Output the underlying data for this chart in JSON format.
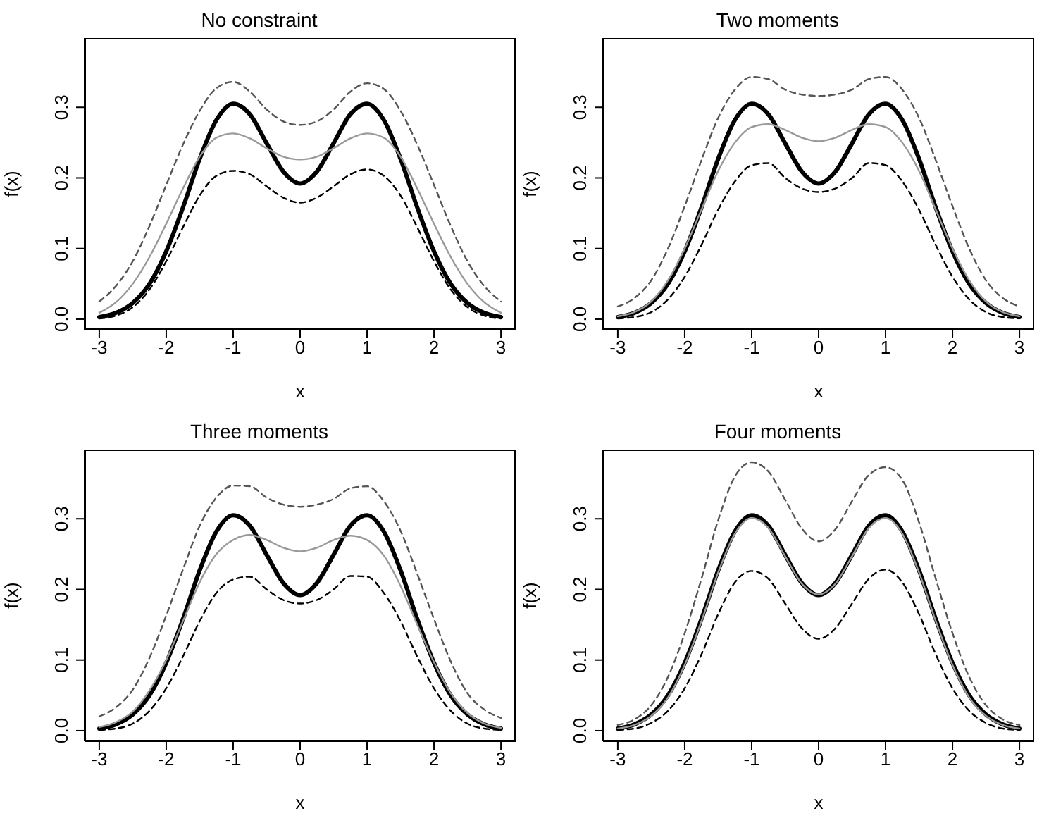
{
  "chart_data": [
    {
      "type": "line",
      "title": "No constraint",
      "xlabel": "x",
      "ylabel": "f(x)",
      "xlim": [
        -3.22,
        3.22
      ],
      "ylim": [
        -0.015,
        0.398
      ],
      "xticks": [
        -3,
        -2,
        -1,
        0,
        1,
        2,
        3
      ],
      "yticks": [
        {
          "value": 0,
          "label": "0.0"
        },
        {
          "value": 0.1,
          "label": "0.1"
        },
        {
          "value": 0.2,
          "label": "0.2"
        },
        {
          "value": 0.3,
          "label": "0.3"
        }
      ],
      "grid": false,
      "legend": false,
      "marker": "none",
      "x": [
        -3,
        -2.75,
        -2.5,
        -2.25,
        -2,
        -1.75,
        -1.5,
        -1.25,
        -1,
        -0.75,
        -0.5,
        -0.25,
        0,
        0.25,
        0.5,
        0.75,
        1,
        1.25,
        1.5,
        1.75,
        2,
        2.25,
        2.5,
        2.75,
        3
      ],
      "series": [
        {
          "color": "#000000",
          "line_style": "solid",
          "values": [
            0.003,
            0.009,
            0.023,
            0.05,
            0.096,
            0.158,
            0.227,
            0.282,
            0.305,
            0.29,
            0.249,
            0.209,
            0.192,
            0.209,
            0.249,
            0.29,
            0.305,
            0.282,
            0.227,
            0.158,
            0.096,
            0.05,
            0.023,
            0.009,
            0.003
          ]
        },
        {
          "color": "#999999",
          "line_style": "solid",
          "values": [
            0.009,
            0.024,
            0.05,
            0.088,
            0.135,
            0.185,
            0.23,
            0.257,
            0.263,
            0.256,
            0.242,
            0.23,
            0.226,
            0.23,
            0.242,
            0.256,
            0.263,
            0.257,
            0.23,
            0.185,
            0.135,
            0.088,
            0.05,
            0.024,
            0.009
          ]
        },
        {
          "color": "#555555",
          "line_style": "dashed",
          "values": [
            0.025,
            0.047,
            0.082,
            0.132,
            0.19,
            0.247,
            0.295,
            0.327,
            0.336,
            0.322,
            0.297,
            0.28,
            0.275,
            0.28,
            0.297,
            0.322,
            0.334,
            0.326,
            0.295,
            0.247,
            0.19,
            0.132,
            0.082,
            0.047,
            0.025
          ]
        },
        {
          "color": "#000000",
          "line_style": "dashed",
          "values": [
            0.001,
            0.005,
            0.017,
            0.042,
            0.082,
            0.13,
            0.175,
            0.203,
            0.21,
            0.205,
            0.188,
            0.172,
            0.165,
            0.172,
            0.188,
            0.205,
            0.212,
            0.203,
            0.175,
            0.13,
            0.082,
            0.042,
            0.017,
            0.005,
            0.001
          ]
        }
      ]
    },
    {
      "type": "line",
      "title": "Two moments",
      "xlabel": "x",
      "ylabel": "f(x)",
      "xlim": [
        -3.22,
        3.22
      ],
      "ylim": [
        -0.015,
        0.398
      ],
      "xticks": [
        -3,
        -2,
        -1,
        0,
        1,
        2,
        3
      ],
      "yticks": [
        {
          "value": 0,
          "label": "0.0"
        },
        {
          "value": 0.1,
          "label": "0.1"
        },
        {
          "value": 0.2,
          "label": "0.2"
        },
        {
          "value": 0.3,
          "label": "0.3"
        }
      ],
      "grid": false,
      "legend": false,
      "marker": "none",
      "x": [
        -3,
        -2.75,
        -2.5,
        -2.25,
        -2,
        -1.75,
        -1.5,
        -1.25,
        -1,
        -0.75,
        -0.5,
        -0.25,
        0,
        0.25,
        0.5,
        0.75,
        1,
        1.25,
        1.5,
        1.75,
        2,
        2.25,
        2.5,
        2.75,
        3
      ],
      "series": [
        {
          "color": "#000000",
          "line_style": "solid",
          "values": [
            0.003,
            0.009,
            0.023,
            0.05,
            0.096,
            0.158,
            0.227,
            0.282,
            0.305,
            0.29,
            0.249,
            0.209,
            0.192,
            0.209,
            0.249,
            0.29,
            0.305,
            0.282,
            0.227,
            0.158,
            0.096,
            0.05,
            0.023,
            0.009,
            0.003
          ]
        },
        {
          "color": "#999999",
          "line_style": "solid",
          "values": [
            0.004,
            0.01,
            0.025,
            0.055,
            0.1,
            0.155,
            0.21,
            0.25,
            0.272,
            0.276,
            0.268,
            0.257,
            0.252,
            0.257,
            0.268,
            0.276,
            0.272,
            0.25,
            0.21,
            0.155,
            0.1,
            0.055,
            0.025,
            0.01,
            0.004
          ]
        },
        {
          "color": "#555555",
          "line_style": "dashed",
          "values": [
            0.018,
            0.03,
            0.055,
            0.1,
            0.16,
            0.225,
            0.285,
            0.325,
            0.343,
            0.34,
            0.325,
            0.318,
            0.316,
            0.318,
            0.325,
            0.34,
            0.343,
            0.325,
            0.285,
            0.225,
            0.16,
            0.1,
            0.055,
            0.03,
            0.018
          ]
        },
        {
          "color": "#000000",
          "line_style": "dashed",
          "values": [
            0.001,
            0.003,
            0.01,
            0.028,
            0.06,
            0.105,
            0.155,
            0.195,
            0.218,
            0.221,
            0.2,
            0.185,
            0.18,
            0.185,
            0.2,
            0.221,
            0.218,
            0.195,
            0.155,
            0.105,
            0.06,
            0.028,
            0.01,
            0.003,
            0.001
          ]
        }
      ]
    },
    {
      "type": "line",
      "title": "Three moments",
      "xlabel": "x",
      "ylabel": "f(x)",
      "xlim": [
        -3.22,
        3.22
      ],
      "ylim": [
        -0.015,
        0.398
      ],
      "xticks": [
        -3,
        -2,
        -1,
        0,
        1,
        2,
        3
      ],
      "yticks": [
        {
          "value": 0,
          "label": "0.0"
        },
        {
          "value": 0.1,
          "label": "0.1"
        },
        {
          "value": 0.2,
          "label": "0.2"
        },
        {
          "value": 0.3,
          "label": "0.3"
        }
      ],
      "grid": false,
      "legend": false,
      "marker": "none",
      "x": [
        -3,
        -2.75,
        -2.5,
        -2.25,
        -2,
        -1.75,
        -1.5,
        -1.25,
        -1,
        -0.75,
        -0.5,
        -0.25,
        0,
        0.25,
        0.5,
        0.75,
        1,
        1.25,
        1.5,
        1.75,
        2,
        2.25,
        2.5,
        2.75,
        3
      ],
      "series": [
        {
          "color": "#000000",
          "line_style": "solid",
          "values": [
            0.003,
            0.009,
            0.023,
            0.05,
            0.096,
            0.158,
            0.227,
            0.282,
            0.305,
            0.29,
            0.249,
            0.209,
            0.192,
            0.209,
            0.249,
            0.29,
            0.305,
            0.282,
            0.227,
            0.158,
            0.096,
            0.05,
            0.023,
            0.009,
            0.003
          ]
        },
        {
          "color": "#999999",
          "line_style": "solid",
          "values": [
            0.005,
            0.012,
            0.027,
            0.057,
            0.1,
            0.155,
            0.21,
            0.25,
            0.27,
            0.277,
            0.27,
            0.259,
            0.254,
            0.259,
            0.27,
            0.276,
            0.27,
            0.248,
            0.205,
            0.15,
            0.097,
            0.053,
            0.025,
            0.01,
            0.004
          ]
        },
        {
          "color": "#555555",
          "line_style": "dashed",
          "values": [
            0.02,
            0.033,
            0.058,
            0.103,
            0.163,
            0.228,
            0.29,
            0.33,
            0.347,
            0.346,
            0.33,
            0.32,
            0.317,
            0.32,
            0.328,
            0.343,
            0.346,
            0.325,
            0.283,
            0.222,
            0.158,
            0.098,
            0.053,
            0.03,
            0.018
          ]
        },
        {
          "color": "#000000",
          "line_style": "dashed",
          "values": [
            0.001,
            0.003,
            0.01,
            0.028,
            0.06,
            0.105,
            0.155,
            0.195,
            0.214,
            0.218,
            0.2,
            0.185,
            0.18,
            0.185,
            0.2,
            0.219,
            0.218,
            0.195,
            0.155,
            0.105,
            0.06,
            0.028,
            0.01,
            0.003,
            0.001
          ]
        }
      ]
    },
    {
      "type": "line",
      "title": "Four moments",
      "xlabel": "x",
      "ylabel": "f(x)",
      "xlim": [
        -3.22,
        3.22
      ],
      "ylim": [
        -0.015,
        0.398
      ],
      "xticks": [
        -3,
        -2,
        -1,
        0,
        1,
        2,
        3
      ],
      "yticks": [
        {
          "value": 0,
          "label": "0.0"
        },
        {
          "value": 0.1,
          "label": "0.1"
        },
        {
          "value": 0.2,
          "label": "0.2"
        },
        {
          "value": 0.3,
          "label": "0.3"
        }
      ],
      "grid": false,
      "legend": false,
      "marker": "none",
      "x": [
        -3,
        -2.75,
        -2.5,
        -2.25,
        -2,
        -1.75,
        -1.5,
        -1.25,
        -1,
        -0.75,
        -0.5,
        -0.25,
        0,
        0.25,
        0.5,
        0.75,
        1,
        1.25,
        1.5,
        1.75,
        2,
        2.25,
        2.5,
        2.75,
        3
      ],
      "series": [
        {
          "color": "#000000",
          "line_style": "solid",
          "values": [
            0.003,
            0.009,
            0.023,
            0.05,
            0.096,
            0.158,
            0.227,
            0.282,
            0.305,
            0.29,
            0.249,
            0.209,
            0.192,
            0.209,
            0.249,
            0.29,
            0.305,
            0.282,
            0.227,
            0.158,
            0.096,
            0.05,
            0.023,
            0.009,
            0.003
          ]
        },
        {
          "color": "#999999",
          "line_style": "solid",
          "values": [
            0.003,
            0.008,
            0.021,
            0.047,
            0.093,
            0.155,
            0.224,
            0.279,
            0.301,
            0.287,
            0.247,
            0.208,
            0.193,
            0.208,
            0.247,
            0.287,
            0.301,
            0.279,
            0.224,
            0.155,
            0.093,
            0.047,
            0.021,
            0.008,
            0.003
          ]
        },
        {
          "color": "#555555",
          "line_style": "dashed",
          "values": [
            0.008,
            0.016,
            0.036,
            0.076,
            0.138,
            0.215,
            0.298,
            0.36,
            0.38,
            0.367,
            0.327,
            0.286,
            0.268,
            0.285,
            0.325,
            0.362,
            0.373,
            0.355,
            0.295,
            0.215,
            0.138,
            0.076,
            0.036,
            0.016,
            0.008
          ]
        },
        {
          "color": "#000000",
          "line_style": "dashed",
          "values": [
            0.001,
            0.003,
            0.011,
            0.028,
            0.06,
            0.108,
            0.165,
            0.21,
            0.226,
            0.215,
            0.18,
            0.145,
            0.13,
            0.145,
            0.18,
            0.215,
            0.228,
            0.21,
            0.165,
            0.108,
            0.06,
            0.028,
            0.011,
            0.003,
            0.001
          ]
        }
      ]
    }
  ]
}
